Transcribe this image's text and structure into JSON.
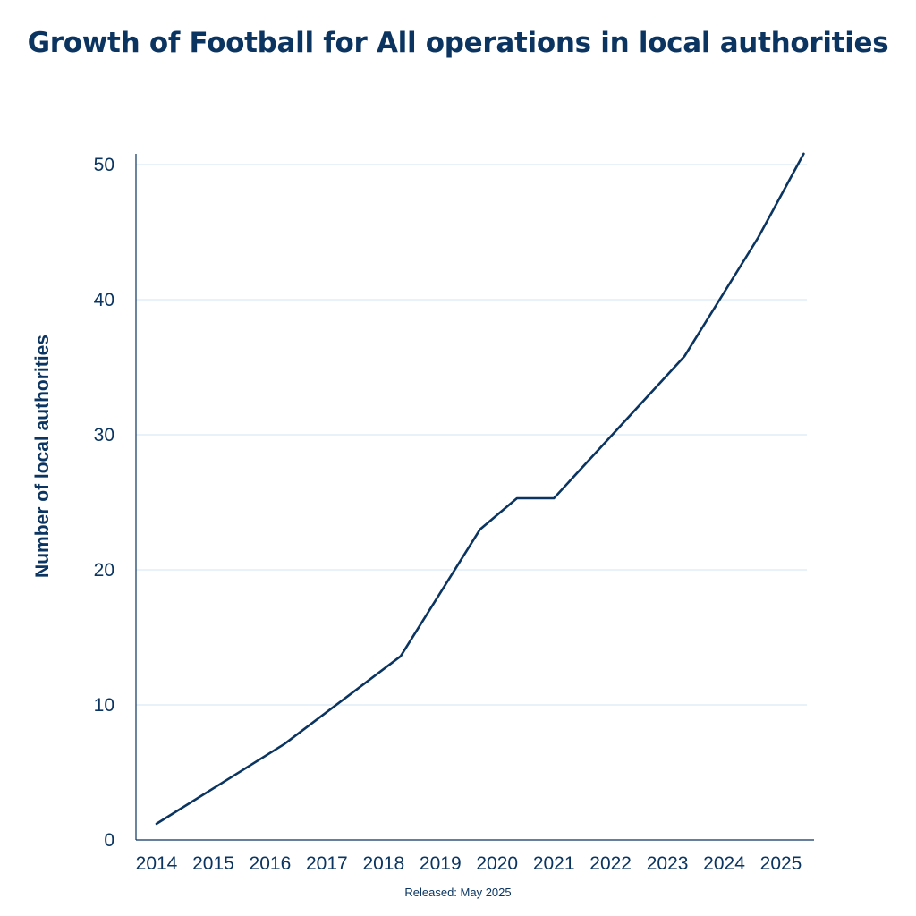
{
  "chart_data": {
    "type": "line",
    "title": "Growth of Football for All operations in local authorities",
    "xlabel": "",
    "ylabel": "Number of local authorities",
    "x_tick_labels": [
      "2014",
      "2015",
      "2016",
      "2017",
      "2018",
      "2019",
      "2020",
      "2021",
      "2022",
      "2023",
      "2024",
      "2025"
    ],
    "y_ticks": [
      0,
      10,
      20,
      30,
      40,
      50
    ],
    "ylim": [
      0,
      50
    ],
    "grid": true,
    "series": [
      {
        "x": [
          2014.0,
          2016.25,
          2018.3,
          2019.7,
          2020.35,
          2021.0,
          2023.3,
          2024.6,
          2025.4
        ],
        "y": [
          1.2,
          7.1,
          13.6,
          23.0,
          25.3,
          25.3,
          35.8,
          44.6,
          50.8
        ]
      }
    ],
    "colors": {
      "line": "#0b3560",
      "grid": "#d3e6f2",
      "axis": "#0b3560"
    }
  },
  "footer": "Released: May 2025"
}
